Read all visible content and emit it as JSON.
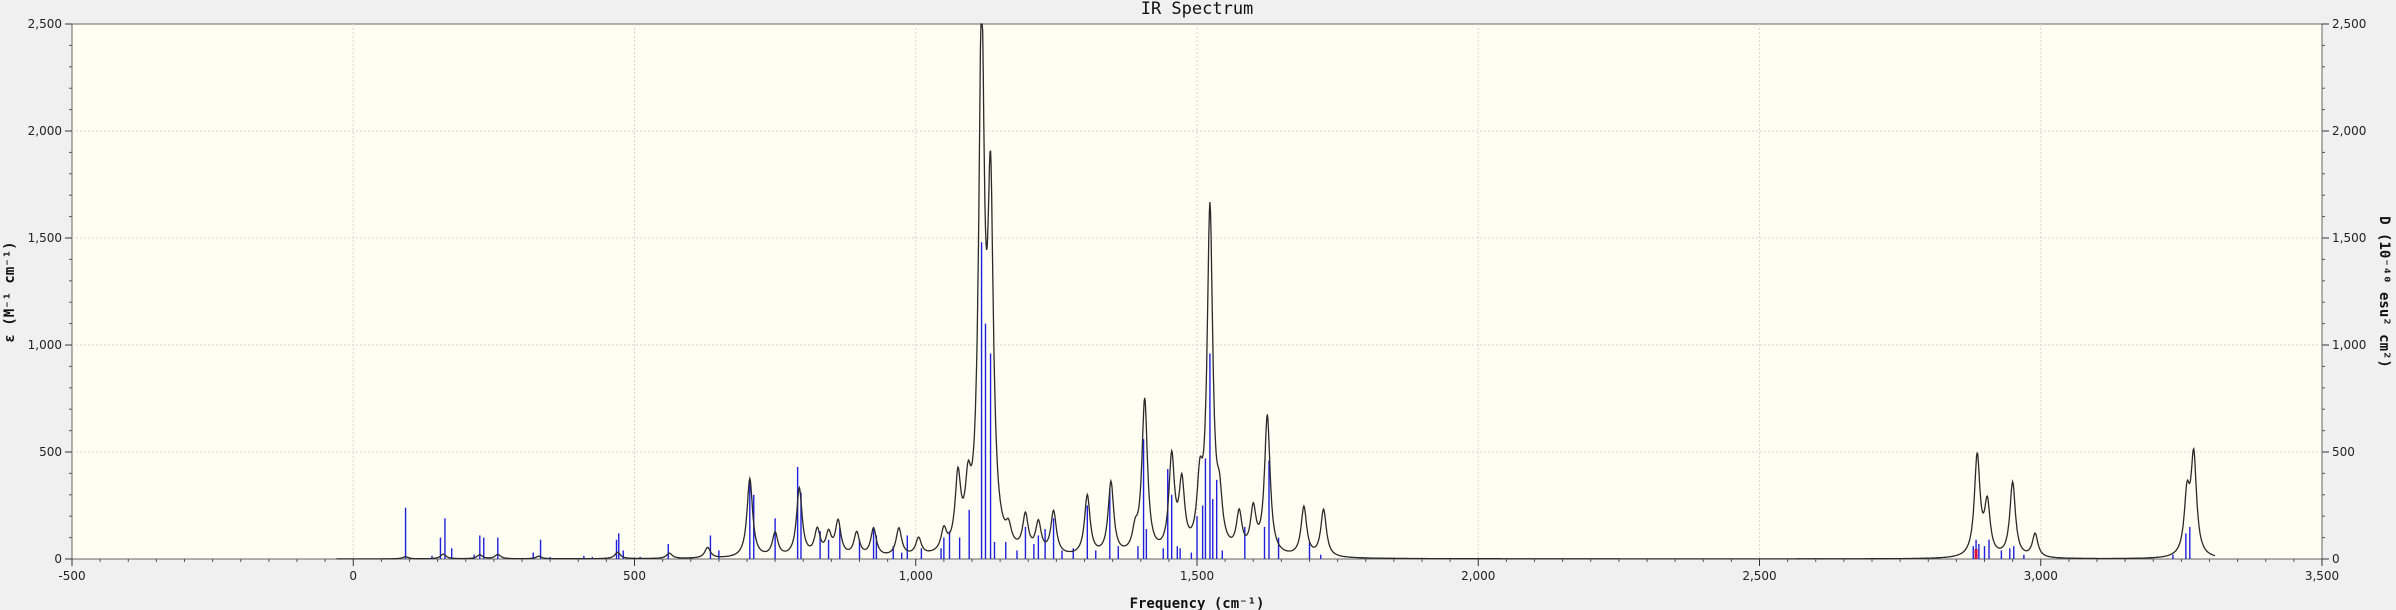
{
  "chart_data": {
    "type": "line",
    "title": "IR Spectrum",
    "xlabel": "Frequency (cm⁻¹)",
    "ylabel_left": "ε (M⁻¹ cm⁻¹)",
    "ylabel_right": "D (10⁻⁴⁰ esu² cm²)",
    "xlim": [
      -500,
      3500
    ],
    "ylim": [
      0,
      2500
    ],
    "x_ticks": [
      -500,
      0,
      500,
      1000,
      1500,
      2000,
      2500,
      3000,
      3500
    ],
    "x_tick_labels": [
      "-500",
      "0",
      "500",
      "1,000",
      "1,500",
      "2,000",
      "2,500",
      "3,000",
      "3,500"
    ],
    "y_ticks": [
      0,
      500,
      1000,
      1500,
      2000,
      2500
    ],
    "y_tick_labels": [
      "0",
      "500",
      "1,000",
      "1,500",
      "2,000",
      "2,500"
    ],
    "grid": true,
    "spectrum_range": [
      -30,
      3310
    ],
    "series": [
      {
        "kind": "spectrum",
        "color": "#2a2a2a",
        "peaks": [
          {
            "x": 93,
            "y": 10
          },
          {
            "x": 160,
            "y": 22
          },
          {
            "x": 225,
            "y": 18
          },
          {
            "x": 257,
            "y": 20
          },
          {
            "x": 330,
            "y": 12
          },
          {
            "x": 470,
            "y": 30
          },
          {
            "x": 562,
            "y": 25
          },
          {
            "x": 630,
            "y": 50
          },
          {
            "x": 705,
            "y": 370
          },
          {
            "x": 750,
            "y": 110
          },
          {
            "x": 793,
            "y": 320
          },
          {
            "x": 825,
            "y": 120
          },
          {
            "x": 845,
            "y": 100
          },
          {
            "x": 862,
            "y": 160
          },
          {
            "x": 895,
            "y": 110
          },
          {
            "x": 925,
            "y": 130
          },
          {
            "x": 970,
            "y": 130
          },
          {
            "x": 1005,
            "y": 80
          },
          {
            "x": 1050,
            "y": 100
          },
          {
            "x": 1075,
            "y": 330
          },
          {
            "x": 1093,
            "y": 240
          },
          {
            "x": 1117,
            "y": 2440
          },
          {
            "x": 1133,
            "y": 1590
          },
          {
            "x": 1165,
            "y": 80
          },
          {
            "x": 1195,
            "y": 170
          },
          {
            "x": 1218,
            "y": 140
          },
          {
            "x": 1245,
            "y": 200
          },
          {
            "x": 1305,
            "y": 280
          },
          {
            "x": 1347,
            "y": 340
          },
          {
            "x": 1390,
            "y": 90
          },
          {
            "x": 1407,
            "y": 720
          },
          {
            "x": 1455,
            "y": 440
          },
          {
            "x": 1473,
            "y": 310
          },
          {
            "x": 1505,
            "y": 280
          },
          {
            "x": 1523,
            "y": 1600
          },
          {
            "x": 1540,
            "y": 200
          },
          {
            "x": 1575,
            "y": 180
          },
          {
            "x": 1600,
            "y": 200
          },
          {
            "x": 1625,
            "y": 650
          },
          {
            "x": 1690,
            "y": 230
          },
          {
            "x": 1725,
            "y": 220
          },
          {
            "x": 2887,
            "y": 470
          },
          {
            "x": 2905,
            "y": 240
          },
          {
            "x": 2950,
            "y": 350
          },
          {
            "x": 2990,
            "y": 110
          },
          {
            "x": 3260,
            "y": 270
          },
          {
            "x": 3272,
            "y": 460
          }
        ]
      },
      {
        "kind": "stick",
        "color": "#1f1fe0",
        "x": [
          93,
          140,
          155,
          163,
          175,
          215,
          225,
          232,
          257,
          320,
          333,
          350,
          410,
          425,
          468,
          472,
          480,
          510,
          560,
          635,
          650,
          705,
          712,
          750,
          790,
          796,
          830,
          845,
          865,
          900,
          925,
          930,
          960,
          975,
          985,
          1010,
          1045,
          1050,
          1060,
          1078,
          1095,
          1117,
          1124,
          1133,
          1140,
          1160,
          1180,
          1195,
          1210,
          1218,
          1230,
          1245,
          1260,
          1280,
          1305,
          1320,
          1345,
          1360,
          1395,
          1405,
          1410,
          1440,
          1448,
          1455,
          1465,
          1470,
          1490,
          1500,
          1510,
          1515,
          1523,
          1528,
          1535,
          1545,
          1585,
          1620,
          1628,
          1645,
          1700,
          1720,
          2880,
          2885,
          2890,
          2900,
          2908,
          2930,
          2945,
          2952,
          2970,
          3235,
          3258,
          3265
        ],
        "y": [
          240,
          15,
          100,
          190,
          50,
          20,
          110,
          100,
          100,
          30,
          90,
          10,
          15,
          10,
          90,
          120,
          40,
          10,
          70,
          110,
          40,
          360,
          300,
          190,
          430,
          310,
          130,
          90,
          150,
          90,
          150,
          110,
          60,
          30,
          110,
          50,
          50,
          100,
          130,
          100,
          230,
          1480,
          1100,
          960,
          80,
          80,
          40,
          150,
          70,
          110,
          140,
          190,
          40,
          50,
          250,
          40,
          330,
          60,
          60,
          560,
          140,
          50,
          420,
          300,
          60,
          50,
          30,
          200,
          250,
          470,
          960,
          280,
          370,
          40,
          150,
          150,
          460,
          100,
          80,
          20,
          60,
          90,
          70,
          60,
          90,
          40,
          50,
          60,
          20,
          20,
          120,
          150
        ]
      }
    ],
    "highlight_stick": {
      "x": 2885,
      "color": "#e0103a"
    }
  }
}
